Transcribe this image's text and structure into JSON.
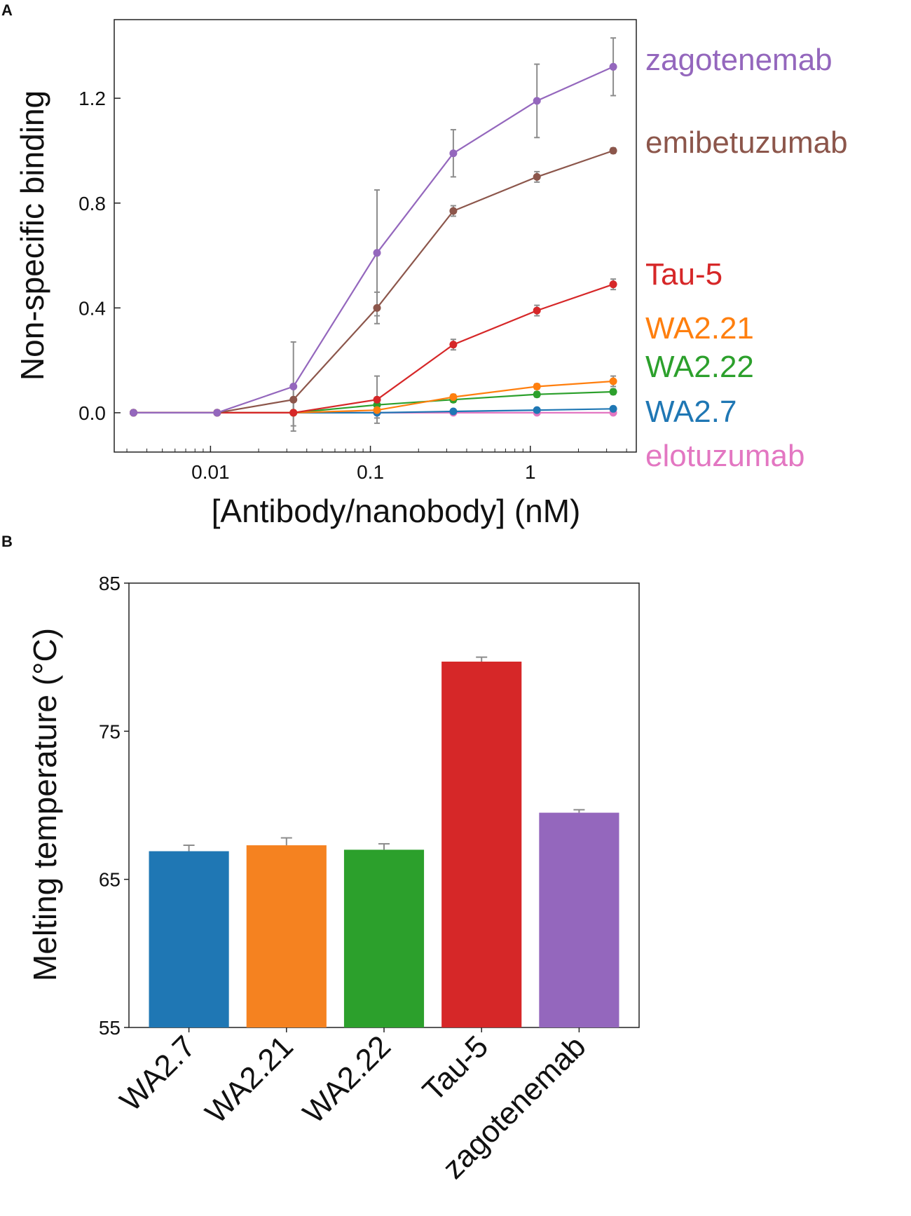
{
  "chart_data": [
    {
      "panel": "A",
      "type": "line",
      "title": "",
      "xlabel": "[Antibody/nanobody] (nM)",
      "ylabel": "Non-specific binding",
      "xscale": "log",
      "xlim": [
        0.0025,
        4.6
      ],
      "ylim": [
        -0.15,
        1.5
      ],
      "xticks": [
        0.01,
        0.1,
        1
      ],
      "xtick_labels": [
        "0.01",
        "0.1",
        "1"
      ],
      "yticks": [
        0.0,
        0.4,
        0.8,
        1.2
      ],
      "ytick_labels": [
        "0.0",
        "0.4",
        "0.8",
        "1.2"
      ],
      "x": [
        0.0033,
        0.011,
        0.033,
        0.11,
        0.33,
        1.1,
        3.3
      ],
      "series": [
        {
          "name": "zagotenemab",
          "color": "#9467bd",
          "label_color": "#9467bd",
          "values": [
            0.0,
            0.0,
            0.1,
            0.61,
            0.99,
            1.19,
            1.32
          ],
          "errors": [
            0.0,
            0.0,
            0.17,
            0.24,
            0.09,
            0.14,
            0.11
          ]
        },
        {
          "name": "emibetuzumab",
          "color": "#8c564b",
          "label_color": "#8c564b",
          "values": [
            0.0,
            0.0,
            0.05,
            0.4,
            0.77,
            0.9,
            1.0
          ],
          "errors": [
            0.0,
            0.0,
            0.05,
            0.06,
            0.02,
            0.02,
            0.01
          ]
        },
        {
          "name": "Tau-5",
          "color": "#d62728",
          "label_color": "#d62728",
          "values": [
            0.0,
            0.0,
            0.0,
            0.05,
            0.26,
            0.39,
            0.49
          ],
          "errors": [
            0.0,
            0.0,
            0.0,
            0.09,
            0.02,
            0.02,
            0.02
          ]
        },
        {
          "name": "WA2.21",
          "color": "#ff7f0e",
          "label_color": "#ff7f0e",
          "values": [
            0.0,
            0.0,
            0.0,
            0.01,
            0.06,
            0.1,
            0.12
          ],
          "errors": [
            0.0,
            0.0,
            0.0,
            0.01,
            0.01,
            0.01,
            0.02
          ]
        },
        {
          "name": "WA2.22",
          "color": "#2ca02c",
          "label_color": "#2ca02c",
          "values": [
            0.0,
            0.0,
            0.0,
            0.03,
            0.05,
            0.07,
            0.08
          ],
          "errors": [
            0.0,
            0.0,
            0.0,
            0.01,
            0.01,
            0.01,
            0.01
          ]
        },
        {
          "name": "WA2.7",
          "color": "#1f77b4",
          "label_color": "#1f77b4",
          "values": [
            0.0,
            0.0,
            0.0,
            0.0,
            0.005,
            0.01,
            0.015
          ],
          "errors": [
            0.0,
            0.0,
            0.0,
            0.0,
            0.0,
            0.0,
            0.0
          ]
        },
        {
          "name": "elotuzumab",
          "color": "#e377c2",
          "label_color": "#e377c2",
          "values": [
            0.0,
            0.0,
            0.0,
            0.0,
            0.0,
            0.0,
            0.0
          ],
          "errors": [
            0.0,
            0.0,
            0.05,
            0.02,
            0.0,
            0.0,
            0.0
          ]
        }
      ],
      "legend": "right-side direct labels"
    },
    {
      "panel": "B",
      "type": "bar",
      "title": "",
      "xlabel": "",
      "ylabel": "Melting temperature (°C)",
      "ylim": [
        55,
        85
      ],
      "yticks": [
        55,
        65,
        75,
        85
      ],
      "ytick_labels": [
        "55",
        "65",
        "75",
        "85"
      ],
      "categories": [
        "WA2.7",
        "WA2.21",
        "WA2.22",
        "Tau-5",
        "zagotenemab"
      ],
      "values": [
        66.9,
        67.3,
        67.0,
        79.7,
        69.5
      ],
      "errors": [
        0.4,
        0.5,
        0.4,
        0.3,
        0.2
      ],
      "colors": [
        "#1f77b4",
        "#f58220",
        "#2ca02c",
        "#d62728",
        "#9467bd"
      ]
    }
  ],
  "panel_labels": [
    "A",
    "B"
  ],
  "error_bar_color": "#8c8c8c"
}
